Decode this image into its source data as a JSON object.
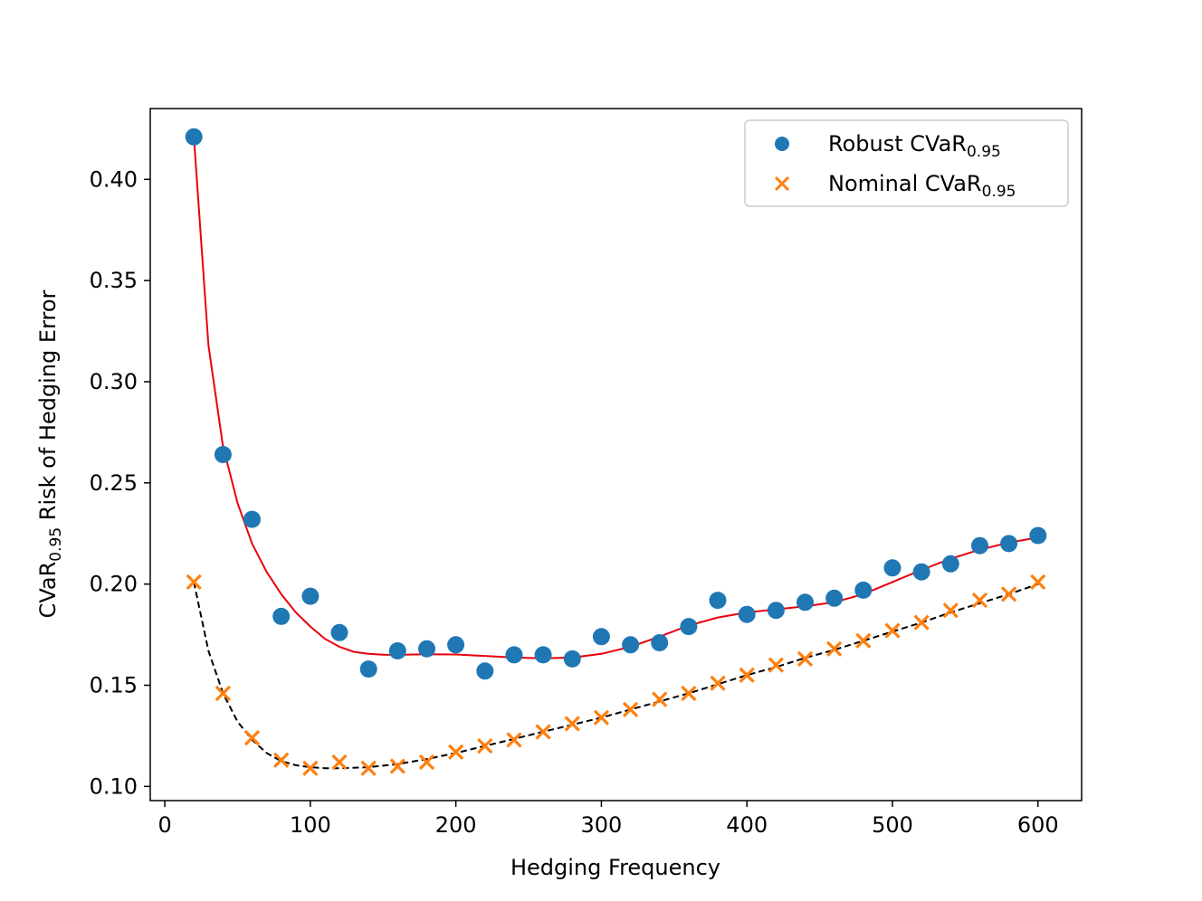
{
  "chart_data": {
    "type": "scatter",
    "title": "",
    "xlabel": "Hedging Frequency",
    "ylabel": {
      "prefix": "CVaR",
      "sub": "0.95",
      "suffix": " Risk of Hedging Error"
    },
    "xlim": [
      -10,
      630
    ],
    "ylim": [
      0.093,
      0.435
    ],
    "xticks": [
      0,
      100,
      200,
      300,
      400,
      500,
      600
    ],
    "xtick_labels": [
      "0",
      "100",
      "200",
      "300",
      "400",
      "500",
      "600"
    ],
    "yticks": [
      0.1,
      0.15,
      0.2,
      0.25,
      0.3,
      0.35,
      0.4
    ],
    "ytick_labels": [
      "0.10",
      "0.15",
      "0.20",
      "0.25",
      "0.30",
      "0.35",
      "0.40"
    ],
    "grid": false,
    "legend": {
      "placement": "top-right"
    },
    "series": [
      {
        "name": "Robust CVaR",
        "name_sub": "0.95",
        "marker": "circle",
        "color": "#1f77b4",
        "x": [
          20,
          40,
          60,
          80,
          100,
          120,
          140,
          160,
          180,
          200,
          220,
          240,
          260,
          280,
          300,
          320,
          340,
          360,
          380,
          400,
          420,
          440,
          460,
          480,
          500,
          520,
          540,
          560,
          580,
          600
        ],
        "values": [
          0.421,
          0.264,
          0.232,
          0.184,
          0.194,
          0.176,
          0.158,
          0.167,
          0.168,
          0.17,
          0.157,
          0.165,
          0.165,
          0.163,
          0.174,
          0.17,
          0.171,
          0.179,
          0.192,
          0.185,
          0.187,
          0.191,
          0.193,
          0.197,
          0.208,
          0.206,
          0.21,
          0.219,
          0.22,
          0.224
        ]
      },
      {
        "name": "Nominal CVaR",
        "name_sub": "0.95",
        "marker": "x",
        "color": "#ff7f0e",
        "x": [
          20,
          40,
          60,
          80,
          100,
          120,
          140,
          160,
          180,
          200,
          220,
          240,
          260,
          280,
          300,
          320,
          340,
          360,
          380,
          400,
          420,
          440,
          460,
          480,
          500,
          520,
          540,
          560,
          580,
          600
        ],
        "values": [
          0.201,
          0.146,
          0.124,
          0.113,
          0.109,
          0.112,
          0.109,
          0.11,
          0.112,
          0.117,
          0.12,
          0.123,
          0.127,
          0.131,
          0.134,
          0.138,
          0.143,
          0.146,
          0.151,
          0.155,
          0.16,
          0.163,
          0.168,
          0.172,
          0.177,
          0.181,
          0.187,
          0.192,
          0.195,
          0.201
        ]
      }
    ],
    "fit_lines": [
      {
        "name": "robust-fit",
        "color": "#e8000b",
        "style": "solid",
        "x": [
          20,
          30,
          40,
          50,
          60,
          70,
          80,
          90,
          100,
          110,
          120,
          130,
          140,
          150,
          160,
          180,
          200,
          220,
          240,
          260,
          280,
          300,
          320,
          340,
          360,
          380,
          400,
          420,
          440,
          460,
          480,
          500,
          520,
          540,
          560,
          580,
          600
        ],
        "values": [
          0.421,
          0.318,
          0.268,
          0.24,
          0.22,
          0.206,
          0.195,
          0.186,
          0.179,
          0.173,
          0.169,
          0.1665,
          0.1655,
          0.1651,
          0.165,
          0.1653,
          0.1652,
          0.1645,
          0.1637,
          0.1633,
          0.1637,
          0.1655,
          0.169,
          0.174,
          0.1795,
          0.1835,
          0.186,
          0.1875,
          0.189,
          0.191,
          0.195,
          0.201,
          0.207,
          0.2125,
          0.217,
          0.2205,
          0.223
        ]
      },
      {
        "name": "nominal-fit",
        "color": "#000000",
        "style": "dashed",
        "x": [
          20,
          30,
          40,
          50,
          60,
          70,
          80,
          90,
          100,
          110,
          120,
          140,
          160,
          180,
          200,
          220,
          240,
          260,
          280,
          300,
          320,
          340,
          360,
          380,
          400,
          420,
          440,
          460,
          480,
          500,
          520,
          540,
          560,
          580,
          600
        ],
        "values": [
          0.201,
          0.167,
          0.146,
          0.132,
          0.123,
          0.1165,
          0.1125,
          0.1105,
          0.1095,
          0.109,
          0.109,
          0.1095,
          0.111,
          0.1135,
          0.1165,
          0.12,
          0.1235,
          0.127,
          0.1305,
          0.134,
          0.138,
          0.142,
          0.146,
          0.1505,
          0.155,
          0.159,
          0.1635,
          0.1675,
          0.172,
          0.1765,
          0.181,
          0.186,
          0.1905,
          0.195,
          0.2
        ]
      }
    ]
  }
}
